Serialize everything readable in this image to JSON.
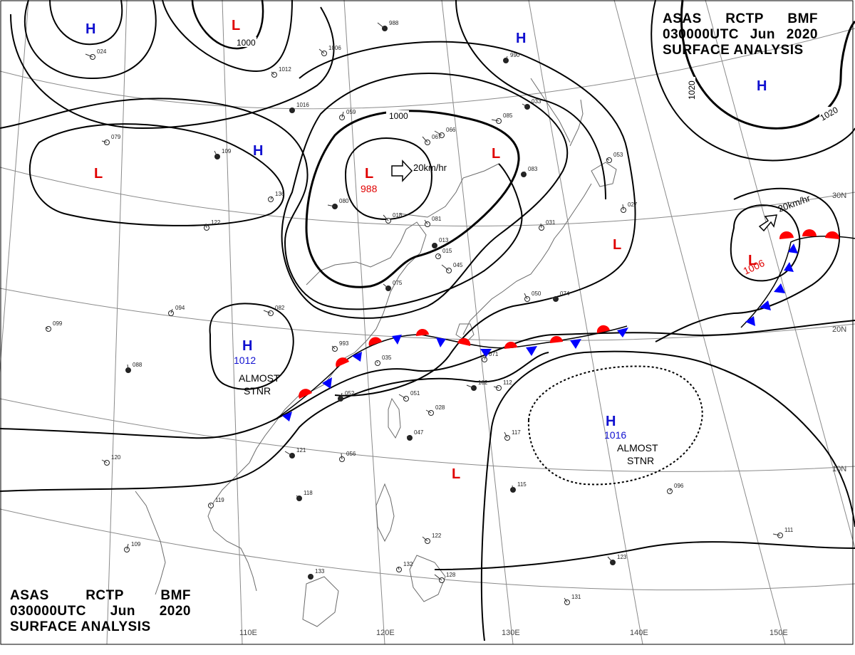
{
  "header": {
    "line1": [
      "ASAS",
      "RCTP",
      "BMF"
    ],
    "line2": [
      "030000UTC",
      "Jun",
      "2020"
    ],
    "line3": "SURFACE ANALYSIS"
  },
  "grid": {
    "longitudes": [
      "110E",
      "120E",
      "130E",
      "140E",
      "150E"
    ],
    "latitudes": [
      "30N",
      "20N",
      "10N"
    ]
  },
  "isobars": [
    "1000",
    "1000",
    "1020",
    "1020"
  ],
  "pressure_systems": [
    {
      "type": "H",
      "pressure": "",
      "note": ""
    },
    {
      "type": "L",
      "pressure": "",
      "note": ""
    },
    {
      "type": "H",
      "pressure": "",
      "note": ""
    },
    {
      "type": "H",
      "pressure": "",
      "note": ""
    },
    {
      "type": "L",
      "pressure": "",
      "note": ""
    },
    {
      "type": "H",
      "pressure": "",
      "note": ""
    },
    {
      "type": "L",
      "pressure": "988",
      "note": ""
    },
    {
      "type": "L",
      "pressure": "",
      "note": ""
    },
    {
      "type": "L",
      "pressure": "",
      "note": ""
    },
    {
      "type": "L",
      "pressure": "1006",
      "note": ""
    },
    {
      "type": "H",
      "pressure": "1012",
      "note": "ALMOST STNR"
    },
    {
      "type": "H",
      "pressure": "1016",
      "note": "ALMOST STNR"
    },
    {
      "type": "L",
      "pressure": "",
      "note": ""
    }
  ],
  "motion_labels": [
    "20km/hr",
    "20km/hr"
  ],
  "almost_stnr_lines": [
    "ALMOST",
    "STNR"
  ],
  "station_samples": [
    "988",
    "1006",
    "1012",
    "1016",
    "059",
    "066",
    "033",
    "053",
    "027",
    "990",
    "024",
    "079",
    "109",
    "122",
    "136",
    "080",
    "018",
    "081",
    "013",
    "015",
    "045",
    "075",
    "993",
    "035",
    "052",
    "051",
    "028",
    "047",
    "056",
    "071",
    "102",
    "112",
    "117",
    "115",
    "096",
    "111",
    "123",
    "131",
    "132",
    "133",
    "128",
    "122",
    "118",
    "119",
    "109",
    "121",
    "120",
    "099",
    "088",
    "094",
    "082",
    "074",
    "050",
    "031",
    "083",
    "085",
    "067"
  ],
  "colors": {
    "low": "#e00000",
    "high": "#1010d0",
    "warm_front": "#ff0000",
    "cold_front": "#0000ff",
    "isobar": "#000000",
    "coast": "#6a6a6a",
    "grid": "#8a8a8a"
  }
}
